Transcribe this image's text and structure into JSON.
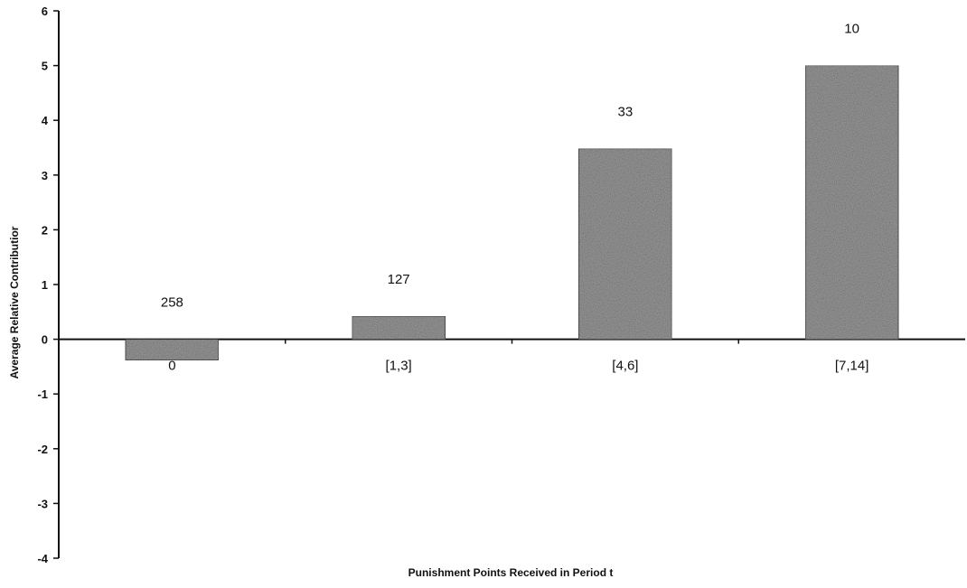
{
  "chart_data": {
    "type": "bar",
    "title": "",
    "xlabel": "Punishment Points Received in Period t",
    "ylabel": "Average Relative Contributior",
    "categories": [
      "0",
      "[1,3]",
      "[4,6]",
      "[7,14]"
    ],
    "values": [
      -0.38,
      0.42,
      3.48,
      5.0
    ],
    "data_labels": [
      "258",
      "127",
      "33",
      "10"
    ],
    "ylim": [
      -4,
      6
    ],
    "yticks": [
      -4,
      -3,
      -2,
      -1,
      0,
      1,
      2,
      3,
      4,
      5,
      6
    ],
    "grid": false,
    "legend": "none",
    "bar_color": "#9a9a9a",
    "axis_color": "#111111"
  }
}
